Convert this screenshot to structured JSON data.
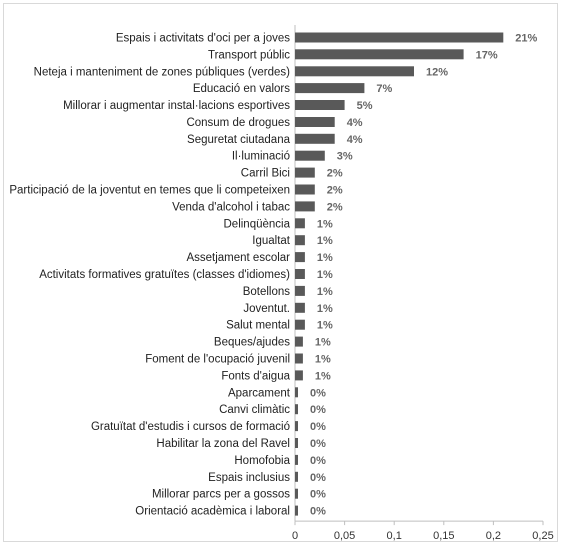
{
  "chart_data": {
    "type": "bar",
    "orientation": "horizontal",
    "categories": [
      "Espais i activitats d'oci per a joves",
      "Transport públic",
      "Neteja i manteniment de zones públiques (verdes)",
      "Educació en valors",
      "Millorar i augmentar instal·lacions esportives",
      "Consum de drogues",
      "Seguretat ciutadana",
      "Il·luminació",
      "Carril Bici",
      "Participació de la joventut en temes que li competeixen",
      "Venda d'alcohol i tabac",
      "Delinqüència",
      "Igualtat",
      "Assetjament escolar",
      "Activitats formatives gratuïtes (classes d'idiomes)",
      "Botellons",
      "Joventut.",
      "Salut mental",
      "Beques/ajudes",
      "Foment de l'ocupació juvenil",
      "Fonts d'aigua",
      "Aparcament",
      "Canvi climàtic",
      "Gratuïtat d'estudis i cursos de formació",
      "Habilitar la zona del Ravel",
      "Homofobia",
      "Espais inclusius",
      "Millorar parcs per a gossos",
      "Orientació acadèmica i laboral"
    ],
    "values": [
      0.21,
      0.17,
      0.12,
      0.07,
      0.05,
      0.04,
      0.04,
      0.03,
      0.02,
      0.02,
      0.02,
      0.01,
      0.01,
      0.01,
      0.01,
      0.01,
      0.01,
      0.01,
      0.008,
      0.008,
      0.008,
      0.003,
      0.003,
      0.003,
      0.003,
      0.003,
      0.003,
      0.003,
      0.003
    ],
    "data_labels": [
      "21%",
      "17%",
      "12%",
      "7%",
      "5%",
      "4%",
      "4%",
      "3%",
      "2%",
      "2%",
      "2%",
      "1%",
      "1%",
      "1%",
      "1%",
      "1%",
      "1%",
      "1%",
      "1%",
      "1%",
      "1%",
      "0%",
      "0%",
      "0%",
      "0%",
      "0%",
      "0%",
      "0%",
      "0%"
    ],
    "xlim": [
      0,
      0.25
    ],
    "xticks": [
      0,
      0.05,
      0.1,
      0.15,
      0.2,
      0.25
    ],
    "xtick_labels": [
      "0",
      "0,05",
      "0,1",
      "0,15",
      "0,2",
      "0,25"
    ],
    "grid": false,
    "legend": "none",
    "title": "",
    "xlabel": "",
    "ylabel": ""
  },
  "colors": {
    "bar": "#595959",
    "axis": "#bfbfbf",
    "value_label": "#666666"
  }
}
